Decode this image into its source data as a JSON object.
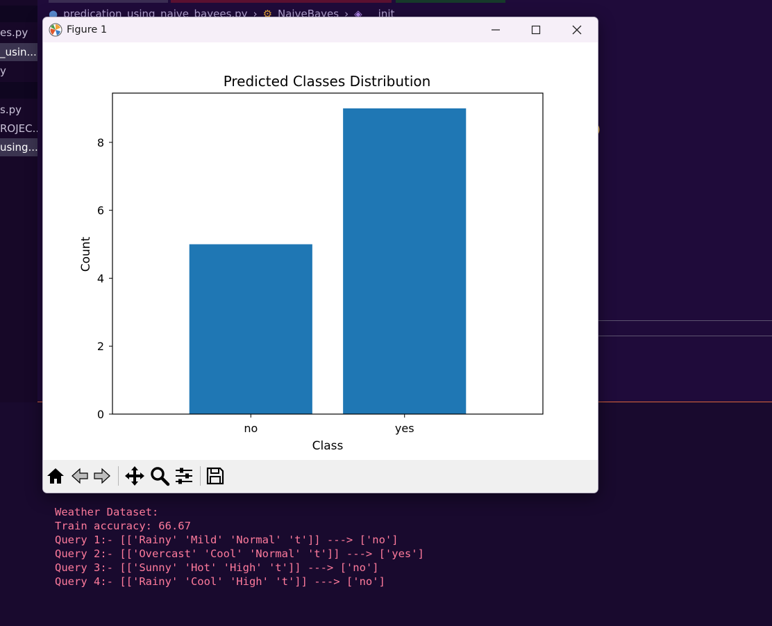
{
  "editor": {
    "breadcrumb": [
      {
        "text": "predication_using_naive_bayees.py",
        "icon": "python-icon"
      },
      {
        "text": "NaiveBayes",
        "icon": "class-icon"
      },
      {
        "text": "__init__",
        "icon": "method-icon"
      }
    ],
    "sidebar_items": [
      {
        "label": "es.py",
        "active": false
      },
      {
        "label": "_usin...",
        "active": true
      },
      {
        "label": "y",
        "active": false
      },
      {
        "label": "s.py",
        "active": false
      },
      {
        "label": "ROJEC...",
        "active": false
      },
      {
        "label": "using...",
        "active": true
      }
    ],
    "paren": ")"
  },
  "window": {
    "title": "Figure 1",
    "icon": "matplotlib-icon",
    "controls": [
      "minimize-icon",
      "maximize-icon",
      "close-icon"
    ]
  },
  "toolbar": {
    "buttons": [
      "home-icon",
      "back-icon",
      "forward-icon",
      "pan-icon",
      "zoom-icon",
      "configure-subplots-icon",
      "save-icon"
    ]
  },
  "chart_data": {
    "type": "bar",
    "title": "Predicted Classes Distribution",
    "xlabel": "Class",
    "ylabel": "Count",
    "categories": [
      "no",
      "yes"
    ],
    "values": [
      5,
      9
    ],
    "ylim": [
      0,
      9.45
    ],
    "yticks": [
      0,
      2,
      4,
      6,
      8
    ],
    "color": "#1f77b4",
    "grid": false
  },
  "terminal": {
    "lines": [
      "Weather Dataset:",
      "Train accuracy: 66.67",
      "Query 1:- [['Rainy' 'Mild' 'Normal' 't']] ---> ['no']",
      "Query 2:- [['Overcast' 'Cool' 'Normal' 't']] ---> ['yes']",
      "Query 3:- [['Sunny' 'Hot' 'High' 't']] ---> ['no']",
      "Query 4:- [['Rainy' 'Cool' 'High' 't']] ---> ['no']"
    ],
    "color": "#ff7b9c"
  }
}
